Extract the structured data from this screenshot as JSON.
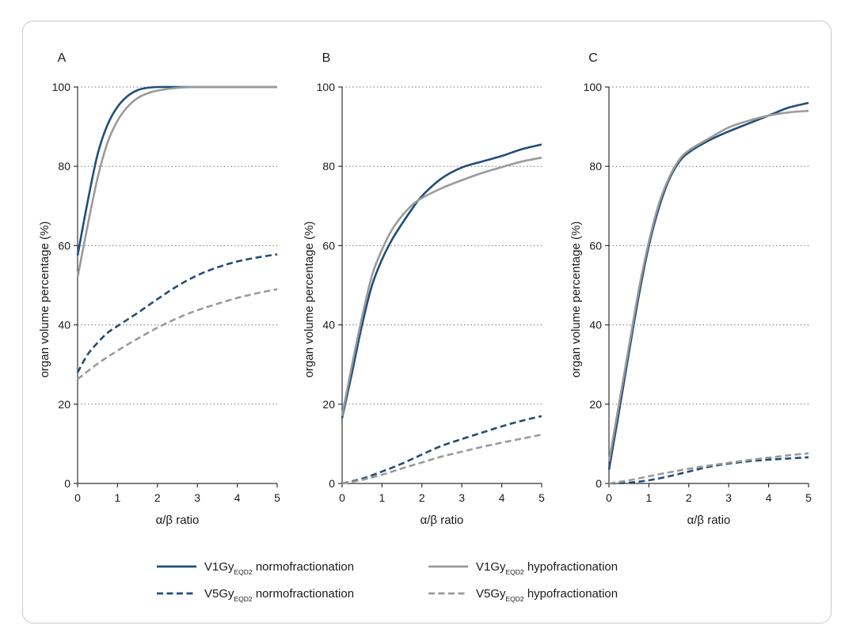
{
  "colors": {
    "normo": "#1f4e7a",
    "hypo": "#9a9a9a",
    "grid": "#555555",
    "axis": "#333333"
  },
  "legend": {
    "items": [
      {
        "main": "V1Gy",
        "sub": "EQD2",
        "rest": " normofractionation",
        "series": "v1_normo"
      },
      {
        "main": "V1Gy",
        "sub": "EQD2",
        "rest": " hypofractionation",
        "series": "v1_hypo"
      },
      {
        "main": "V5Gy",
        "sub": "EQD2",
        "rest": " normofractionation",
        "series": "v5_normo"
      },
      {
        "main": "V5Gy",
        "sub": "EQD2",
        "rest": " hypofractionation",
        "series": "v5_hypo"
      }
    ]
  },
  "chart_data": [
    {
      "type": "line",
      "panel_label": "A",
      "xlabel": "α/β ratio",
      "ylabel": "organ volume percentage (%)",
      "xlim": [
        0,
        5
      ],
      "ylim": [
        0,
        100
      ],
      "xticks": [
        0,
        1,
        2,
        3,
        4,
        5
      ],
      "yticks": [
        0,
        20,
        40,
        60,
        80,
        100
      ],
      "grid": "horizontal dotted",
      "series": [
        {
          "id": "v1_normo",
          "style": "solid",
          "color_key": "normo",
          "x": [
            0,
            0.25,
            0.5,
            0.75,
            1.0,
            1.25,
            1.5,
            1.75,
            2.0,
            2.5,
            3,
            4,
            5
          ],
          "y": [
            57.5,
            71,
            83,
            90.5,
            95,
            97.7,
            99.2,
            99.8,
            100,
            100,
            100,
            100,
            100
          ]
        },
        {
          "id": "v1_hypo",
          "style": "solid",
          "color_key": "hypo",
          "x": [
            0,
            0.25,
            0.5,
            0.75,
            1.0,
            1.25,
            1.5,
            1.75,
            2.0,
            2.5,
            3,
            4,
            5
          ],
          "y": [
            52,
            65,
            77,
            86,
            91.5,
            95,
            97.2,
            98.4,
            99.1,
            99.8,
            100,
            100,
            100
          ]
        },
        {
          "id": "v5_normo",
          "style": "dashed",
          "color_key": "normo",
          "x": [
            0,
            0.25,
            0.5,
            0.75,
            1.0,
            1.5,
            2.0,
            2.5,
            3.0,
            3.5,
            4.0,
            4.5,
            5.0
          ],
          "y": [
            28,
            32.5,
            35.5,
            38,
            39.7,
            43,
            46.5,
            49.8,
            52.5,
            54.5,
            56,
            57,
            57.8
          ]
        },
        {
          "id": "v5_hypo",
          "style": "dashed",
          "color_key": "hypo",
          "x": [
            0,
            0.5,
            1.0,
            1.5,
            2.0,
            2.5,
            3.0,
            3.5,
            4.0,
            4.5,
            5.0
          ],
          "y": [
            26.3,
            30.2,
            33.5,
            36.5,
            39.3,
            41.7,
            43.7,
            45.3,
            46.8,
            48,
            49
          ]
        }
      ]
    },
    {
      "type": "line",
      "panel_label": "B",
      "xlabel": "α/β ratio",
      "ylabel": "organ volume percentage (%)",
      "xlim": [
        0,
        5
      ],
      "ylim": [
        0,
        100
      ],
      "xticks": [
        0,
        1,
        2,
        3,
        4,
        5
      ],
      "yticks": [
        0,
        20,
        40,
        60,
        80,
        100
      ],
      "grid": "horizontal dotted",
      "series": [
        {
          "id": "v1_normo",
          "style": "solid",
          "color_key": "normo",
          "x": [
            0,
            0.25,
            0.5,
            0.75,
            1.0,
            1.25,
            1.5,
            1.75,
            2.0,
            2.5,
            3.0,
            3.5,
            4.0,
            4.5,
            5.0
          ],
          "y": [
            16.5,
            28,
            40,
            50,
            56.5,
            61.5,
            65.5,
            69.2,
            72.5,
            77,
            79.7,
            81.2,
            82.6,
            84.3,
            85.5
          ]
        },
        {
          "id": "v1_hypo",
          "style": "solid",
          "color_key": "hypo",
          "x": [
            0,
            0.25,
            0.5,
            0.75,
            1.0,
            1.25,
            1.5,
            1.75,
            2.0,
            2.5,
            3.0,
            3.5,
            4.0,
            4.5,
            5.0
          ],
          "y": [
            17,
            30,
            42,
            52.5,
            59,
            64,
            67.5,
            70.2,
            72,
            74.5,
            76.5,
            78.3,
            79.8,
            81.2,
            82.2
          ]
        },
        {
          "id": "v5_normo",
          "style": "dashed",
          "color_key": "normo",
          "x": [
            0,
            0.5,
            1.0,
            1.5,
            2.0,
            2.5,
            3.0,
            3.5,
            4.0,
            4.5,
            5.0
          ],
          "y": [
            0,
            1.2,
            3,
            5,
            7.3,
            9.5,
            11.2,
            12.8,
            14.4,
            15.8,
            17
          ]
        },
        {
          "id": "v5_hypo",
          "style": "dashed",
          "color_key": "hypo",
          "x": [
            0,
            0.5,
            1.0,
            1.5,
            2.0,
            2.5,
            3.0,
            3.5,
            4.0,
            4.5,
            5.0
          ],
          "y": [
            0,
            0.9,
            2.2,
            3.8,
            5.3,
            6.8,
            8,
            9.2,
            10.3,
            11.3,
            12.3
          ]
        }
      ]
    },
    {
      "type": "line",
      "panel_label": "C",
      "xlabel": "α/β ratio",
      "ylabel": "organ volume percentage (%)",
      "xlim": [
        0,
        5
      ],
      "ylim": [
        0,
        100
      ],
      "xticks": [
        0,
        1,
        2,
        3,
        4,
        5
      ],
      "yticks": [
        0,
        20,
        40,
        60,
        80,
        100
      ],
      "grid": "horizontal dotted",
      "series": [
        {
          "id": "v1_normo",
          "style": "solid",
          "color_key": "normo",
          "x": [
            0,
            0.25,
            0.5,
            0.75,
            1.0,
            1.25,
            1.5,
            1.75,
            2.0,
            2.5,
            3.0,
            3.5,
            4.0,
            4.5,
            5.0
          ],
          "y": [
            3.5,
            18,
            33,
            47.5,
            60,
            69.5,
            76.5,
            81,
            83.5,
            86.5,
            88.8,
            90.8,
            92.8,
            94.8,
            96
          ]
        },
        {
          "id": "v1_hypo",
          "style": "solid",
          "color_key": "hypo",
          "x": [
            0,
            0.25,
            0.5,
            0.75,
            1.0,
            1.25,
            1.5,
            1.75,
            2.0,
            2.5,
            3.0,
            3.5,
            4.0,
            4.5,
            5.0
          ],
          "y": [
            5.5,
            20,
            34.5,
            49,
            61,
            70.5,
            77,
            81.5,
            84,
            87,
            89.8,
            91.5,
            92.8,
            93.6,
            94
          ]
        },
        {
          "id": "v5_normo",
          "style": "dashed",
          "color_key": "normo",
          "x": [
            0,
            0.5,
            1.0,
            1.5,
            2.0,
            2.5,
            3.0,
            3.5,
            4.0,
            4.5,
            5.0
          ],
          "y": [
            0,
            0.2,
            0.8,
            1.8,
            3,
            4.2,
            5,
            5.6,
            6,
            6.3,
            6.6
          ]
        },
        {
          "id": "v5_hypo",
          "style": "dashed",
          "color_key": "hypo",
          "x": [
            0,
            0.5,
            1.0,
            1.5,
            2.0,
            2.5,
            3.0,
            3.5,
            4.0,
            4.5,
            5.0
          ],
          "y": [
            0,
            0.8,
            1.8,
            2.8,
            3.7,
            4.5,
            5.2,
            5.9,
            6.5,
            7.1,
            7.6
          ]
        }
      ]
    }
  ]
}
